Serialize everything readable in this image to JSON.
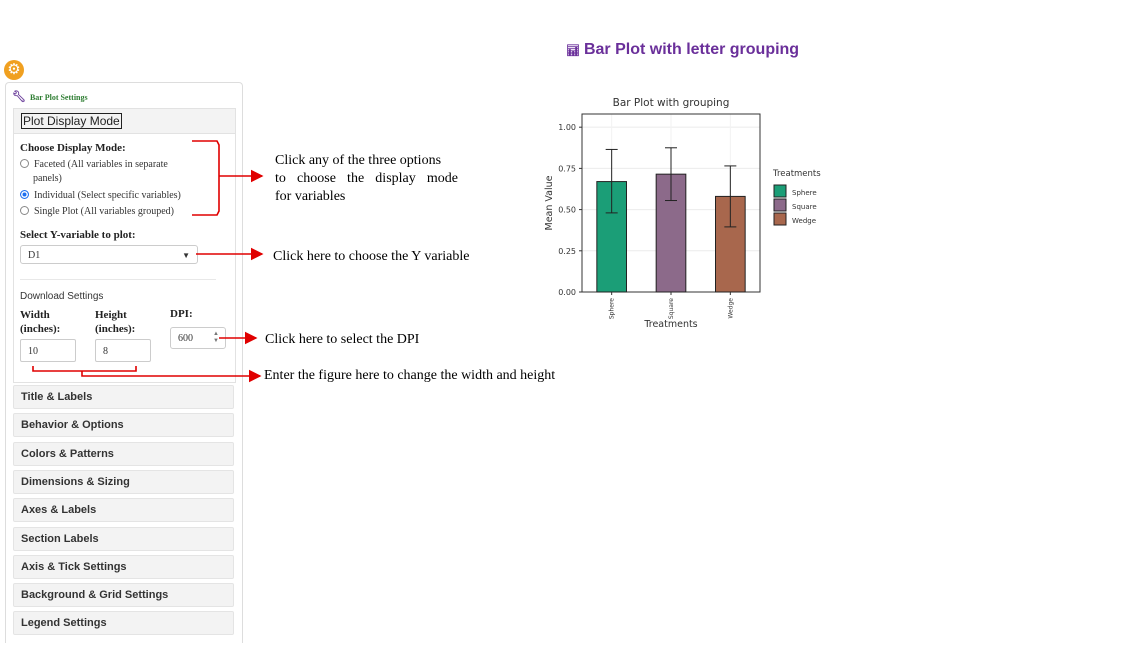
{
  "page_title": "Bar Plot with letter grouping",
  "page_title_icon": "bar-chart-icon",
  "settings_icon": "gear-icon",
  "panel": {
    "title": "Bar Plot Settings",
    "title_icon": "wrench-icon",
    "display_mode_section": "Plot Display Mode",
    "choose_mode_label": "Choose Display Mode:",
    "modes": [
      {
        "line1": "Faceted (All variables in separate",
        "line2": "panels)",
        "selected": false
      },
      {
        "line1": "Individual (Select specific variables)",
        "line2": "",
        "selected": true
      },
      {
        "line1": "Single Plot (All variables grouped)",
        "line2": "",
        "selected": false
      }
    ],
    "y_var_label": "Select Y-variable to plot:",
    "y_var_value": "D1",
    "download_title": "Download Settings",
    "width_label_1": "Width",
    "width_label_2": "(inches):",
    "height_label_1": "Height",
    "height_label_2": "(inches):",
    "dpi_label": "DPI:",
    "width_value": "10",
    "height_value": "8",
    "dpi_value": "600",
    "accordions": [
      "Title & Labels",
      "Behavior & Options",
      "Colors & Patterns",
      "Dimensions & Sizing",
      "Axes & Labels",
      "Section Labels",
      "Axis & Tick Settings",
      "Background & Grid Settings",
      "Legend Settings"
    ]
  },
  "annotations": {
    "mode_line1": "Click any of the three options",
    "mode_line2": "to choose the display mode",
    "mode_line3": "for variables",
    "yvar": "Click here to choose the Y variable",
    "dpi": "Click here to select the DPI",
    "size": "Enter the figure here to change the width and height",
    "arrow_color": "#e00000"
  },
  "chart_data": {
    "type": "bar",
    "title": "Bar Plot with grouping",
    "xlabel": "Treatments",
    "ylabel": "Mean Value",
    "categories": [
      "Sphere",
      "Square",
      "Wedge"
    ],
    "values": [
      0.67,
      0.715,
      0.58
    ],
    "error_low": [
      0.48,
      0.555,
      0.395
    ],
    "error_high": [
      0.865,
      0.875,
      0.765
    ],
    "colors": [
      "#1b9e77",
      "#8c6a8a",
      "#a8674d"
    ],
    "ylim": [
      0,
      1.08
    ],
    "yticks": [
      "0.00",
      "0.25",
      "0.50",
      "0.75",
      "1.00"
    ],
    "legend_title": "Treatments",
    "legend": [
      "Sphere",
      "Square",
      "Wedge"
    ],
    "legend_position": "right",
    "grid": true
  }
}
